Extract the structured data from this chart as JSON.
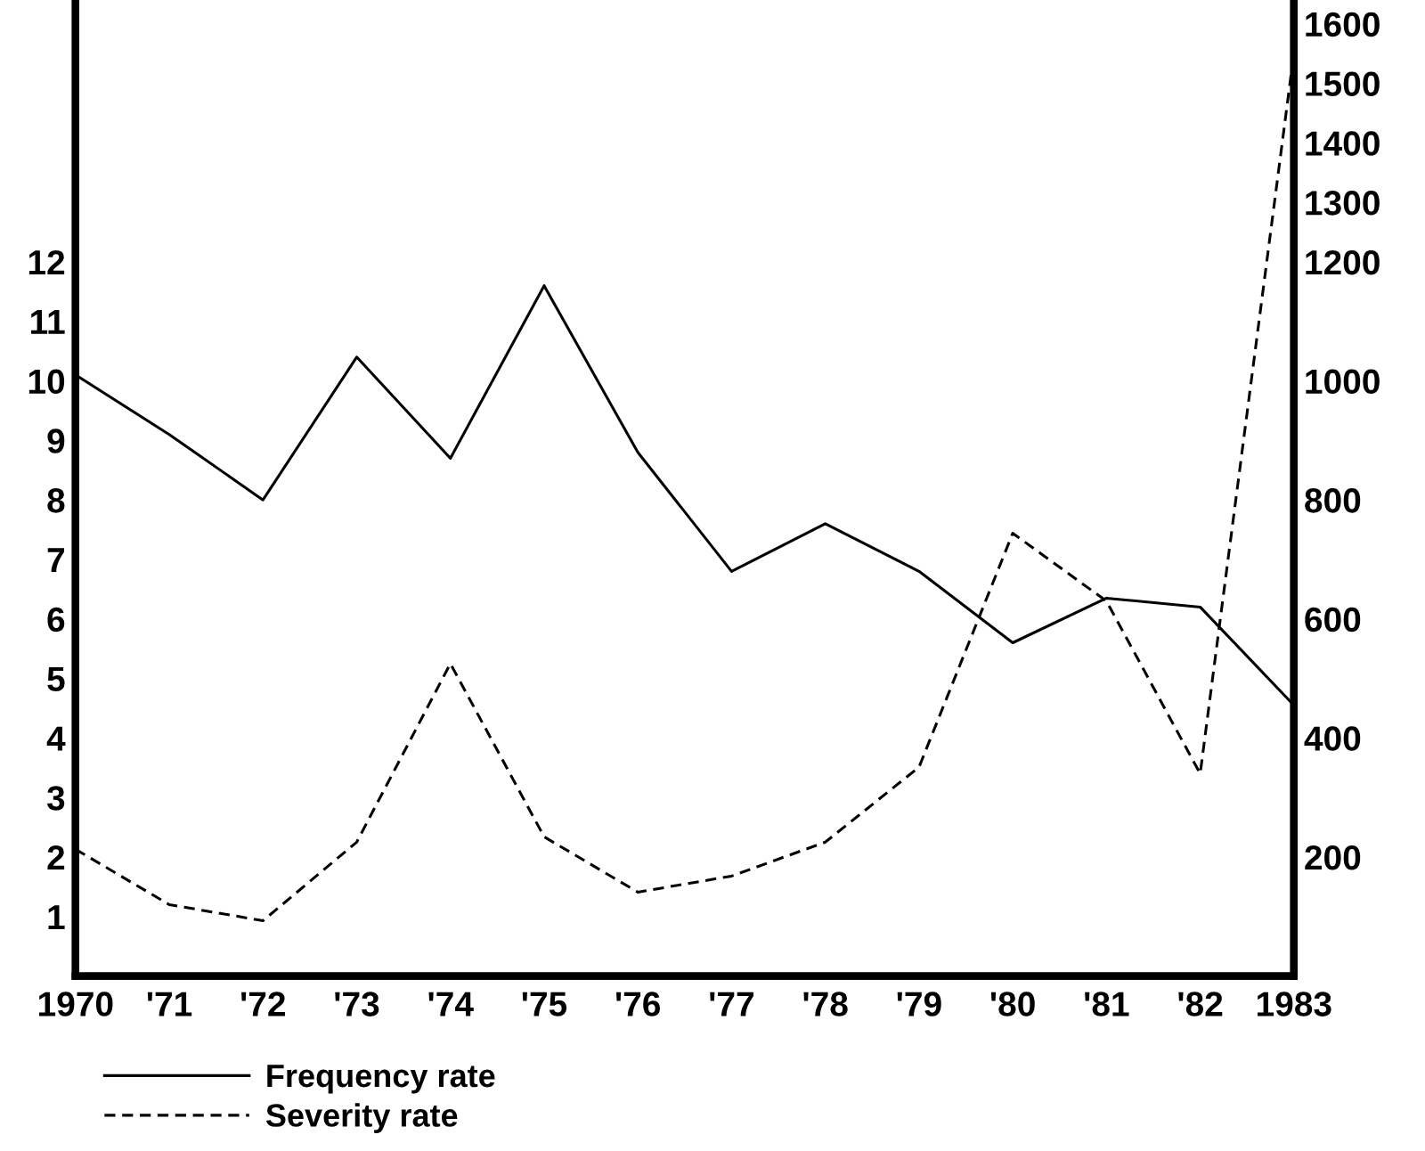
{
  "chart_data": {
    "type": "line",
    "categories": [
      "1970",
      "'71",
      "'72",
      "'73",
      "'74",
      "'75",
      "'76",
      "'77",
      "'78",
      "'79",
      "'80",
      "'81",
      "'82",
      "1983"
    ],
    "series": [
      {
        "name": "Frequency rate",
        "color": "#000000",
        "line_style": "solid",
        "values": [
          10.1,
          9.1,
          8.0,
          10.4,
          8.7,
          11.6,
          8.8,
          6.8,
          7.6,
          6.8,
          5.6,
          6.35,
          6.2,
          4.55
        ]
      },
      {
        "name": "Severity rate",
        "color": "#000000",
        "line_style": "dashed",
        "axis": "y2",
        "values": [
          213,
          120,
          93,
          225,
          525,
          234,
          141,
          168,
          225,
          351,
          744,
          630,
          340,
          1551
        ]
      }
    ],
    "ylim": [
      0,
      16.4
    ],
    "yticks": [
      1,
      2,
      3,
      4,
      5,
      6,
      7,
      8,
      9,
      10,
      11,
      12
    ],
    "y2lim": [
      0,
      1640
    ],
    "y2ticks": [
      200,
      400,
      600,
      800,
      1000,
      1200,
      1300,
      1400,
      1500,
      1600
    ],
    "grid": false,
    "legend": "bottom",
    "marker": "none"
  }
}
